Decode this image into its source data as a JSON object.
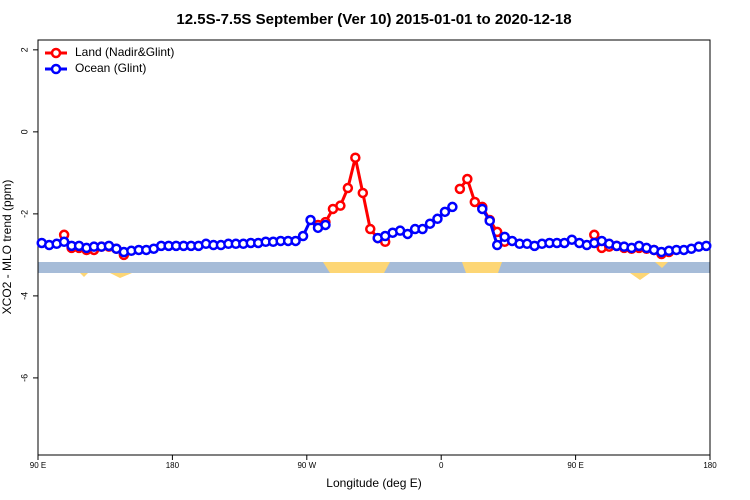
{
  "chart_data": {
    "type": "line",
    "title": "12.5S-7.5S September (Ver 10)   2015-01-01 to 2020-12-18",
    "xlabel": "Longitude (deg E)",
    "ylabel": "XCO2 - MLO trend (ppm)",
    "xlim": [
      90,
      540
    ],
    "ylim": [
      -7.88,
      2.24
    ],
    "xticks": [
      {
        "value": 90,
        "label": "90 E"
      },
      180,
      {
        "value": 270,
        "label": "90 W"
      },
      {
        "value": 360,
        "label": "0"
      },
      {
        "value": 450,
        "label": "90 E"
      },
      {
        "value": 540,
        "label": "180"
      }
    ],
    "yticks": [
      2,
      0,
      -2,
      -4,
      -6
    ],
    "legend": "top-left",
    "x": [
      92.5,
      97.5,
      102.5,
      107.5,
      112.5,
      117.5,
      122.5,
      127.5,
      132.5,
      137.5,
      142.5,
      147.5,
      152.5,
      157.5,
      162.5,
      167.5,
      172.5,
      177.5,
      182.5,
      187.5,
      192.5,
      197.5,
      202.5,
      207.5,
      212.5,
      217.5,
      222.5,
      227.5,
      232.5,
      237.5,
      242.5,
      247.5,
      252.5,
      257.5,
      262.5,
      267.5,
      272.5,
      277.5,
      282.5,
      287.5,
      292.5,
      297.5,
      302.5,
      307.5,
      312.5,
      317.5,
      322.5,
      327.5,
      332.5,
      337.5,
      342.5,
      347.5,
      352.5,
      357.5,
      362.5,
      367.5,
      372.5,
      377.5,
      382.5,
      387.5,
      392.5,
      397.5,
      402.5,
      407.5,
      412.5,
      417.5,
      422.5,
      427.5,
      432.5,
      437.5,
      442.5,
      447.5,
      452.5,
      457.5,
      462.5,
      467.5,
      472.5,
      477.5,
      482.5,
      487.5,
      492.5,
      497.5,
      502.5,
      507.5,
      512.5,
      517.5,
      522.5,
      527.5,
      532.5,
      537.5
    ],
    "series": [
      {
        "name": "Land (Nadir&Glint)",
        "color": "#ff0000",
        "values": [
          null,
          null,
          null,
          -2.51,
          -2.83,
          -2.83,
          -2.88,
          -2.88,
          -2.8,
          -2.8,
          -2.85,
          -3.0,
          null,
          null,
          null,
          null,
          null,
          null,
          null,
          null,
          null,
          null,
          null,
          null,
          null,
          null,
          null,
          null,
          null,
          null,
          null,
          null,
          null,
          null,
          null,
          null,
          null,
          -2.27,
          -2.2,
          -1.88,
          -1.8,
          -1.37,
          -0.63,
          -1.49,
          -2.37,
          -2.59,
          -2.68,
          null,
          null,
          null,
          null,
          null,
          null,
          null,
          null,
          null,
          -1.39,
          -1.15,
          -1.71,
          -1.83,
          -2.15,
          -2.44,
          -2.68,
          null,
          null,
          null,
          null,
          null,
          null,
          null,
          null,
          null,
          null,
          null,
          -2.51,
          -2.83,
          -2.8,
          -2.78,
          -2.83,
          -2.85,
          -2.83,
          -2.85,
          -2.88,
          -2.98,
          -2.93,
          null,
          null,
          null,
          null,
          null
        ]
      },
      {
        "name": "Ocean (Glint)",
        "color": "#0000ff",
        "values": [
          -2.71,
          -2.76,
          -2.73,
          -2.68,
          -2.78,
          -2.78,
          -2.83,
          -2.8,
          -2.8,
          -2.78,
          -2.85,
          -2.93,
          -2.9,
          -2.88,
          -2.88,
          -2.85,
          -2.78,
          -2.78,
          -2.78,
          -2.78,
          -2.78,
          -2.78,
          -2.73,
          -2.76,
          -2.76,
          -2.73,
          -2.73,
          -2.73,
          -2.71,
          -2.71,
          -2.68,
          -2.68,
          -2.66,
          -2.66,
          -2.66,
          -2.54,
          -2.15,
          -2.34,
          -2.27,
          null,
          null,
          null,
          null,
          null,
          null,
          -2.59,
          -2.54,
          -2.46,
          -2.41,
          -2.49,
          -2.37,
          -2.37,
          -2.24,
          -2.12,
          -1.95,
          -1.83,
          null,
          null,
          null,
          -1.88,
          -2.17,
          -2.76,
          -2.56,
          -2.66,
          -2.73,
          -2.73,
          -2.78,
          -2.73,
          -2.71,
          -2.71,
          -2.71,
          -2.63,
          -2.71,
          -2.76,
          -2.71,
          -2.66,
          -2.73,
          -2.78,
          -2.8,
          -2.83,
          -2.78,
          -2.83,
          -2.88,
          -2.93,
          -2.9,
          -2.88,
          -2.88,
          -2.85,
          -2.8,
          -2.78
        ]
      }
    ]
  }
}
